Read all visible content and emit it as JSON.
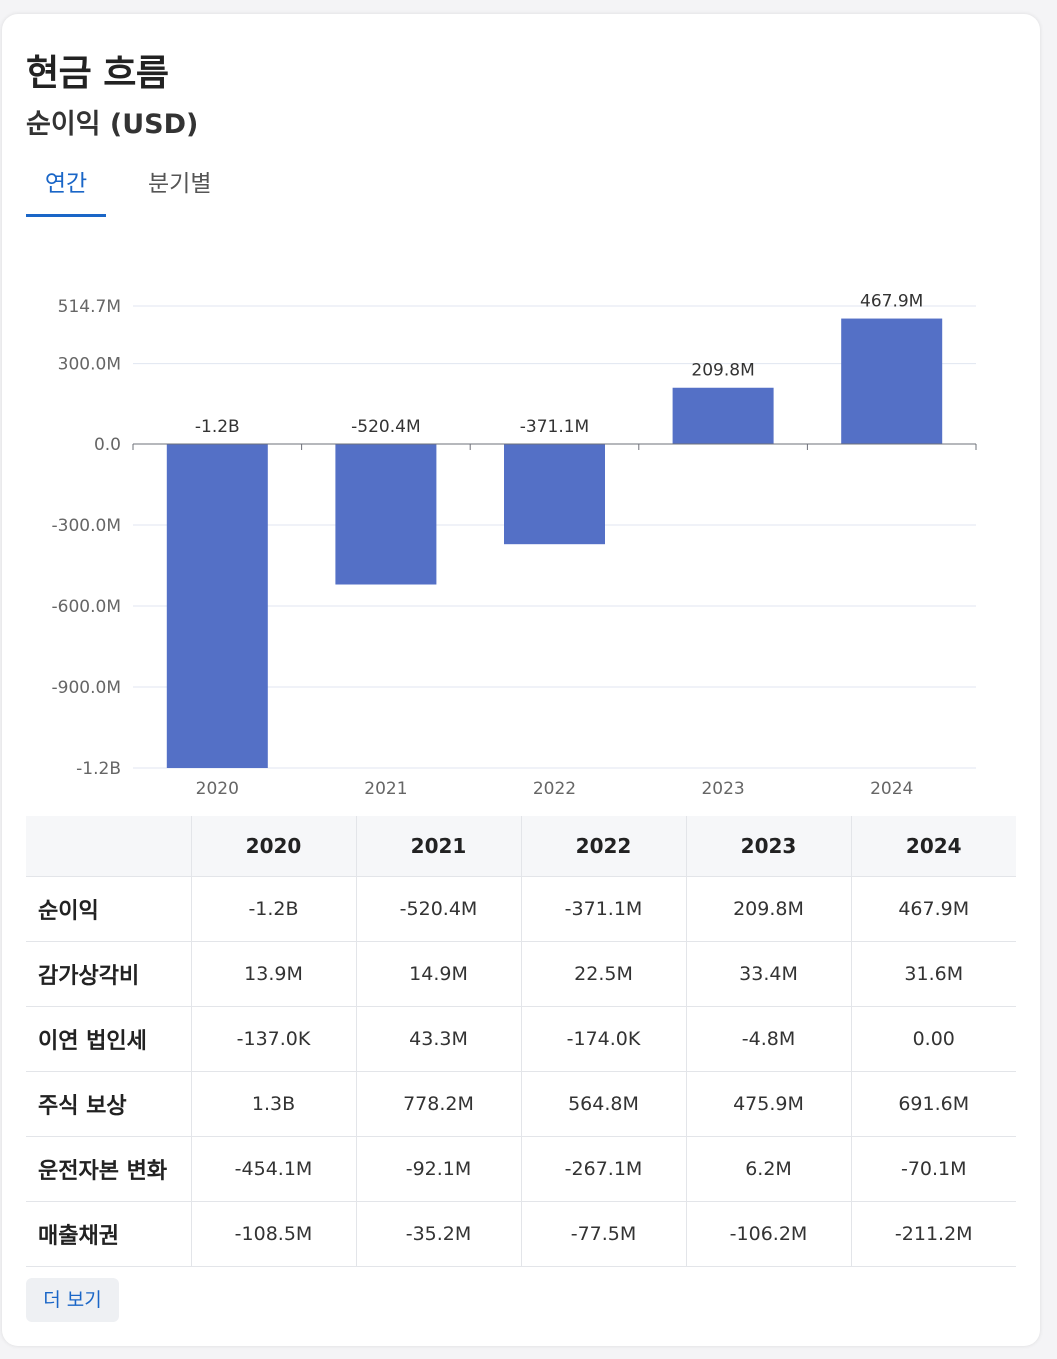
{
  "header": {
    "title": "현금 흐름",
    "subtitle": "순이익 (USD)"
  },
  "tabs": [
    {
      "label": "연간",
      "active": true
    },
    {
      "label": "분기별",
      "active": false
    }
  ],
  "colors": {
    "bar": "#5470c6",
    "accent": "#1a66c7"
  },
  "chart_data": {
    "type": "bar",
    "categories": [
      "2020",
      "2021",
      "2022",
      "2023",
      "2024"
    ],
    "values": [
      -1200000000,
      -520400000,
      -371100000,
      209800000,
      467900000
    ],
    "value_labels": [
      "-1.2B",
      "-520.4M",
      "-371.1M",
      "209.8M",
      "467.9M"
    ],
    "ylim": [
      -1200000000,
      514700000
    ],
    "y_ticks": [
      {
        "value": 514700000,
        "label": "514.7M"
      },
      {
        "value": 300000000,
        "label": "300.0M"
      },
      {
        "value": 0,
        "label": "0.0"
      },
      {
        "value": -300000000,
        "label": "-300.0M"
      },
      {
        "value": -600000000,
        "label": "-600.0M"
      },
      {
        "value": -900000000,
        "label": "-900.0M"
      },
      {
        "value": -1200000000,
        "label": "-1.2B"
      }
    ],
    "grid": true,
    "xlabel": "",
    "ylabel": ""
  },
  "table": {
    "columns": [
      "",
      "2020",
      "2021",
      "2022",
      "2023",
      "2024"
    ],
    "rows": [
      {
        "label": "순이익",
        "values": [
          "-1.2B",
          "-520.4M",
          "-371.1M",
          "209.8M",
          "467.9M"
        ]
      },
      {
        "label": "감가상각비",
        "values": [
          "13.9M",
          "14.9M",
          "22.5M",
          "33.4M",
          "31.6M"
        ]
      },
      {
        "label": "이연 법인세",
        "values": [
          "-137.0K",
          "43.3M",
          "-174.0K",
          "-4.8M",
          "0.00"
        ]
      },
      {
        "label": "주식 보상",
        "values": [
          "1.3B",
          "778.2M",
          "564.8M",
          "475.9M",
          "691.6M"
        ]
      },
      {
        "label": "운전자본 변화",
        "values": [
          "-454.1M",
          "-92.1M",
          "-267.1M",
          "6.2M",
          "-70.1M"
        ]
      },
      {
        "label": "매출채권",
        "values": [
          "-108.5M",
          "-35.2M",
          "-77.5M",
          "-106.2M",
          "-211.2M"
        ]
      }
    ]
  },
  "more_button": "더 보기"
}
